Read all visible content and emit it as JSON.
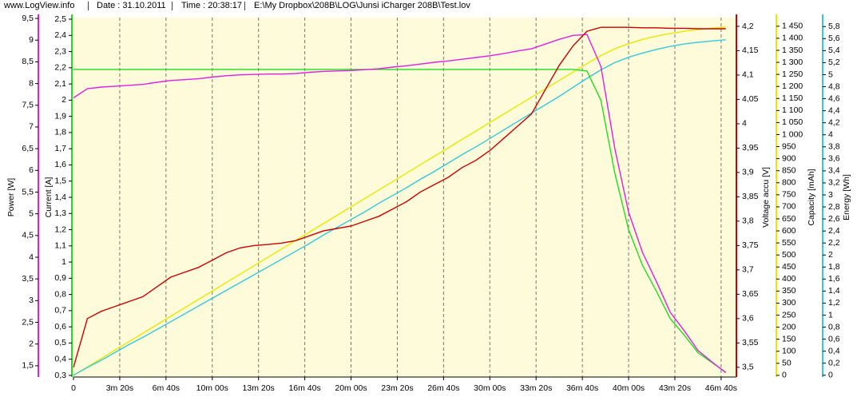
{
  "header": {
    "site": "www.LogView.info",
    "date": "Date : 31.10.2011",
    "time": "Time : 20:38:17",
    "file": "E:\\My Dropbox\\208B\\LOG\\Junsi iCharger 208B\\Test.lov"
  },
  "chart_data": {
    "type": "line",
    "grid": true,
    "x": [
      0,
      60,
      120,
      180,
      240,
      300,
      360,
      420,
      480,
      540,
      600,
      660,
      720,
      780,
      840,
      900,
      960,
      1020,
      1080,
      1140,
      1200,
      1260,
      1320,
      1380,
      1440,
      1500,
      1560,
      1620,
      1680,
      1740,
      1800,
      1860,
      1920,
      1980,
      2040,
      2100,
      2160,
      2220,
      2280,
      2340,
      2400,
      2460,
      2520,
      2580,
      2640,
      2700,
      2760,
      2820
    ],
    "xlim": [
      0,
      2866
    ],
    "xticks": [
      0,
      {
        "value": 200,
        "label": "3m 20s"
      },
      {
        "value": 400,
        "label": "6m 40s"
      },
      {
        "value": 600,
        "label": "10m 00s"
      },
      {
        "value": 800,
        "label": "13m 20s"
      },
      {
        "value": 1000,
        "label": "16m 40s"
      },
      {
        "value": 1200,
        "label": "20m 00s"
      },
      {
        "value": 1400,
        "label": "23m 20s"
      },
      {
        "value": 1600,
        "label": "26m 40s"
      },
      {
        "value": 1800,
        "label": "30m 00s"
      },
      {
        "value": 2000,
        "label": "33m 20s"
      },
      {
        "value": 2200,
        "label": "36m 40s"
      },
      {
        "value": 2400,
        "label": "40m 00s"
      },
      {
        "value": 2600,
        "label": "43m 20s"
      },
      {
        "value": 2800,
        "label": "46m 40s"
      }
    ],
    "series": [
      {
        "name": "Power [W]",
        "color": "#e020e0",
        "side": "left",
        "ylim": [
          1.24,
          9.52
        ],
        "yticks": [
          {
            "value": 1.5,
            "label": "1,5"
          },
          2,
          {
            "value": 2.5,
            "label": "2,5"
          },
          3,
          {
            "value": 3.5,
            "label": "3,5"
          },
          4,
          {
            "value": 4.5,
            "label": "4,5"
          },
          5,
          {
            "value": 5.5,
            "label": "5,5"
          },
          6,
          {
            "value": 6.5,
            "label": "6,5"
          },
          7,
          {
            "value": 7.5,
            "label": "7,5"
          },
          8,
          {
            "value": 8.5,
            "label": "8,5"
          },
          9,
          {
            "value": 9.5,
            "label": "9,5"
          }
        ],
        "values": [
          7.67,
          7.88,
          7.92,
          7.94,
          7.96,
          7.98,
          8.03,
          8.07,
          8.09,
          8.11,
          8.15,
          8.18,
          8.2,
          8.21,
          8.22,
          8.22,
          8.23,
          8.26,
          8.28,
          8.29,
          8.3,
          8.32,
          8.34,
          8.38,
          8.41,
          8.45,
          8.49,
          8.52,
          8.56,
          8.6,
          8.64,
          8.69,
          8.75,
          8.8,
          8.91,
          9.02,
          9.11,
          9.13,
          8.4,
          6.51,
          5.04,
          4.11,
          3.44,
          2.73,
          2.31,
          1.85,
          1.59,
          1.34
        ]
      },
      {
        "name": "Current [A]",
        "color": "#22dd22",
        "side": "left",
        "ylim": [
          0.29,
          2.51
        ],
        "yticks": [
          {
            "value": 0.3,
            "label": "0,3"
          },
          {
            "value": 0.4,
            "label": "0,4"
          },
          {
            "value": 0.5,
            "label": "0,5"
          },
          {
            "value": 0.6,
            "label": "0,6"
          },
          {
            "value": 0.7,
            "label": "0,7"
          },
          {
            "value": 0.8,
            "label": "0,8"
          },
          {
            "value": 0.9,
            "label": "0,9"
          },
          1,
          {
            "value": 1.1,
            "label": "1,1"
          },
          {
            "value": 1.2,
            "label": "1,2"
          },
          {
            "value": 1.3,
            "label": "1,3"
          },
          {
            "value": 1.4,
            "label": "1,4"
          },
          {
            "value": 1.5,
            "label": "1,5"
          },
          {
            "value": 1.6,
            "label": "1,6"
          },
          {
            "value": 1.7,
            "label": "1,7"
          },
          {
            "value": 1.8,
            "label": "1,8"
          },
          {
            "value": 1.9,
            "label": "1,9"
          },
          2,
          {
            "value": 2.1,
            "label": "2,1"
          },
          {
            "value": 2.2,
            "label": "2,2"
          },
          {
            "value": 2.3,
            "label": "2,3"
          },
          {
            "value": 2.4,
            "label": "2,4"
          },
          {
            "value": 2.5,
            "label": "2,5"
          }
        ],
        "values": [
          2.19,
          2.19,
          2.19,
          2.19,
          2.19,
          2.19,
          2.19,
          2.19,
          2.19,
          2.19,
          2.19,
          2.19,
          2.19,
          2.19,
          2.19,
          2.19,
          2.19,
          2.19,
          2.19,
          2.19,
          2.19,
          2.19,
          2.19,
          2.19,
          2.19,
          2.19,
          2.19,
          2.19,
          2.19,
          2.19,
          2.19,
          2.19,
          2.19,
          2.19,
          2.19,
          2.19,
          2.19,
          2.18,
          2.0,
          1.55,
          1.2,
          0.98,
          0.82,
          0.65,
          0.55,
          0.44,
          0.38,
          0.32
        ]
      },
      {
        "name": "Voltage accu [V]",
        "color": "#cc0000",
        "side": "right",
        "ylim": [
          3.48,
          4.218
        ],
        "yticks": [
          {
            "value": 3.5,
            "label": "3,5"
          },
          {
            "value": 3.55,
            "label": "3,55"
          },
          {
            "value": 3.6,
            "label": "3,6"
          },
          {
            "value": 3.65,
            "label": "3,65"
          },
          {
            "value": 3.7,
            "label": "3,7"
          },
          {
            "value": 3.75,
            "label": "3,75"
          },
          {
            "value": 3.8,
            "label": "3,8"
          },
          {
            "value": 3.85,
            "label": "3,85"
          },
          {
            "value": 3.9,
            "label": "3,9"
          },
          {
            "value": 3.95,
            "label": "3,95"
          },
          4,
          {
            "value": 4.05,
            "label": "4,05"
          },
          {
            "value": 4.1,
            "label": "4,1"
          },
          {
            "value": 4.15,
            "label": "4,15"
          },
          {
            "value": 4.2,
            "label": "4,2"
          }
        ],
        "values": [
          3.5,
          3.6,
          3.615,
          3.625,
          3.635,
          3.645,
          3.665,
          3.685,
          3.695,
          3.705,
          3.72,
          3.735,
          3.745,
          3.75,
          3.752,
          3.755,
          3.76,
          3.77,
          3.78,
          3.785,
          3.79,
          3.8,
          3.81,
          3.825,
          3.84,
          3.86,
          3.875,
          3.89,
          3.91,
          3.925,
          3.945,
          3.97,
          3.995,
          4.02,
          4.07,
          4.12,
          4.16,
          4.19,
          4.198,
          4.198,
          4.198,
          4.197,
          4.197,
          4.196,
          4.196,
          4.195,
          4.195,
          4.195
        ]
      },
      {
        "name": "Capacity [mAh]",
        "color": "#e8e800",
        "side": "right",
        "ylim": [
          -7,
          1486
        ],
        "yticks": [
          0,
          50,
          100,
          150,
          200,
          250,
          300,
          350,
          400,
          450,
          500,
          550,
          600,
          650,
          700,
          750,
          800,
          850,
          900,
          950,
          {
            "value": 1000,
            "label": "1 000"
          },
          {
            "value": 1050,
            "label": "1 050"
          },
          {
            "value": 1100,
            "label": "1 100"
          },
          {
            "value": 1150,
            "label": "1 150"
          },
          {
            "value": 1200,
            "label": "1 200"
          },
          {
            "value": 1250,
            "label": "1 250"
          },
          {
            "value": 1300,
            "label": "1 300"
          },
          {
            "value": 1350,
            "label": "1 350"
          },
          {
            "value": 1400,
            "label": "1 400"
          },
          {
            "value": 1450,
            "label": "1 450"
          }
        ],
        "values": [
          0,
          35,
          70,
          105,
          140,
          175,
          210,
          245,
          280,
          315,
          350,
          385,
          420,
          455,
          490,
          525,
          560,
          595,
          630,
          665,
          700,
          735,
          770,
          805,
          840,
          875,
          910,
          945,
          980,
          1015,
          1050,
          1085,
          1120,
          1155,
          1190,
          1225,
          1260,
          1295,
          1328,
          1356,
          1378,
          1395,
          1409,
          1420,
          1429,
          1436,
          1442,
          1447
        ]
      },
      {
        "name": "Energy [Wh]",
        "color": "#33c8dd",
        "side": "right",
        "ylim": [
          -0.03,
          5.95
        ],
        "yticks": [
          0,
          {
            "value": 0.2,
            "label": "0,2"
          },
          {
            "value": 0.4,
            "label": "0,4"
          },
          {
            "value": 0.6,
            "label": "0,6"
          },
          {
            "value": 0.8,
            "label": "0,8"
          },
          1,
          {
            "value": 1.2,
            "label": "1,2"
          },
          {
            "value": 1.4,
            "label": "1,4"
          },
          {
            "value": 1.6,
            "label": "1,6"
          },
          {
            "value": 1.8,
            "label": "1,8"
          },
          2,
          {
            "value": 2.2,
            "label": "2,2"
          },
          {
            "value": 2.4,
            "label": "2,4"
          },
          {
            "value": 2.6,
            "label": "2,6"
          },
          {
            "value": 2.8,
            "label": "2,8"
          },
          3,
          {
            "value": 3.2,
            "label": "3,2"
          },
          {
            "value": 3.4,
            "label": "3,4"
          },
          {
            "value": 3.6,
            "label": "3,6"
          },
          {
            "value": 3.8,
            "label": "3,8"
          },
          4,
          {
            "value": 4.2,
            "label": "4,2"
          },
          {
            "value": 4.4,
            "label": "4,4"
          },
          {
            "value": 4.6,
            "label": "4,6"
          },
          {
            "value": 4.8,
            "label": "4,8"
          },
          5,
          {
            "value": 5.2,
            "label": "5,2"
          },
          {
            "value": 5.4,
            "label": "5,4"
          },
          {
            "value": 5.6,
            "label": "5,6"
          },
          {
            "value": 5.8,
            "label": "5,8"
          }
        ],
        "values": [
          0,
          0.13,
          0.25,
          0.38,
          0.51,
          0.63,
          0.76,
          0.89,
          1.02,
          1.15,
          1.28,
          1.41,
          1.54,
          1.67,
          1.8,
          1.93,
          2.06,
          2.19,
          2.33,
          2.46,
          2.59,
          2.72,
          2.86,
          2.99,
          3.12,
          3.26,
          3.39,
          3.53,
          3.67,
          3.8,
          3.94,
          4.08,
          4.22,
          4.36,
          4.5,
          4.64,
          4.79,
          4.94,
          5.08,
          5.2,
          5.29,
          5.36,
          5.42,
          5.47,
          5.51,
          5.54,
          5.56,
          5.58
        ]
      }
    ]
  }
}
